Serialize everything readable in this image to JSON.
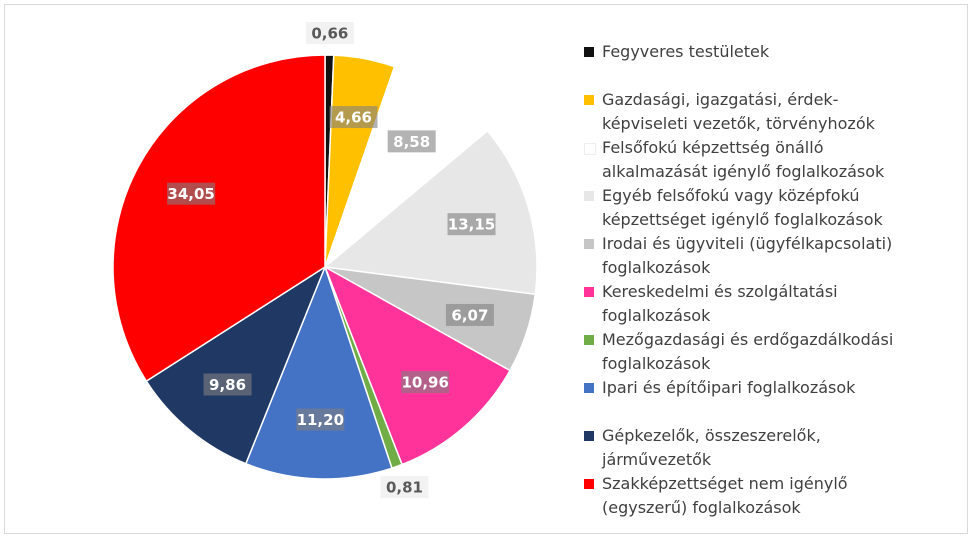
{
  "chart_data": {
    "type": "pie",
    "categories": [
      "Fegyveres testületek",
      "Gazdasági, igazgatási, érdek-képviseleti vezetők, törvényhozók",
      "Felsőfokú képzettség önálló alkalmazását igénylő foglalkozások",
      "Egyéb felsőfokú vagy középfokú képzettséget igénylő foglalkozások",
      "Irodai és ügyviteli (ügyfélkapcsolati) foglalkozások",
      "Kereskedelmi és szolgáltatási foglalkozások",
      "Mezőgazdasági és erdőgazdálkodási foglalkozások",
      "Ipari és építőipari foglalkozások",
      "Gépkezelők, összeszerelők, járművezetők",
      "Szakképzettséget nem igénylő (egyszerű) foglalkozások"
    ],
    "values": [
      0.66,
      4.66,
      8.58,
      13.15,
      6.07,
      10.96,
      0.81,
      11.2,
      9.86,
      34.05
    ],
    "value_labels": [
      "0,66",
      "4,66",
      "8,58",
      "13,15",
      "6,07",
      "10,96",
      "0,81",
      "11,20",
      "9,86",
      "34,05"
    ],
    "colors": [
      "#111111",
      "#ffc000",
      "#ffffff",
      "#e7e7e7",
      "#c6c6c6",
      "#ff3399",
      "#70ad47",
      "#4472c4",
      "#203864",
      "#ff0000"
    ],
    "legend": "right"
  }
}
